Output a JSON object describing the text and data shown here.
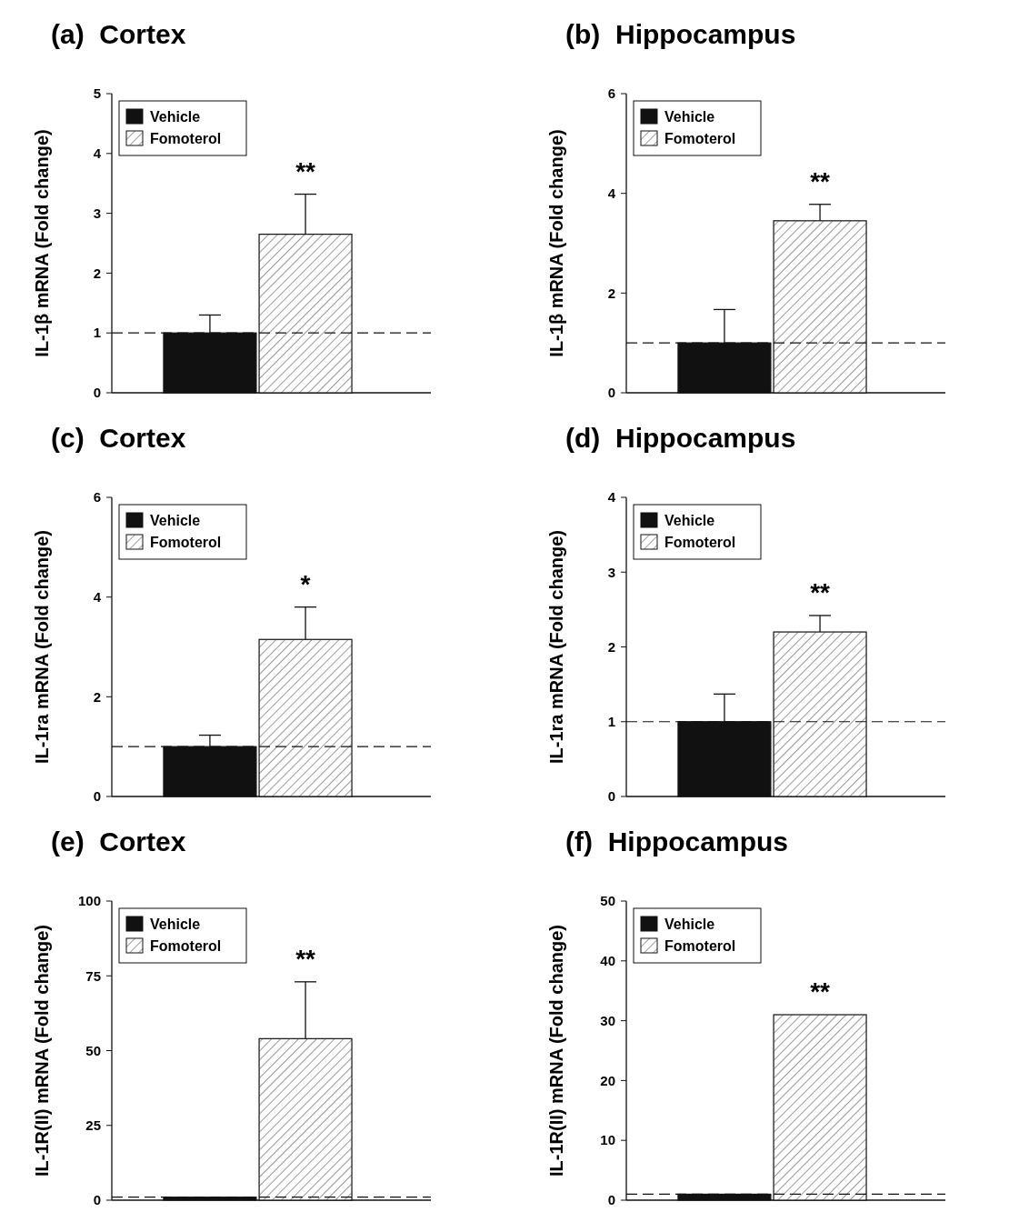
{
  "chart_data": [
    {
      "type": "bar",
      "title": "(a)  Cortex",
      "ylabel": "IL-1β mRNA (Fold change)",
      "categories": [
        null
      ],
      "series": [
        {
          "name": "Vehicle",
          "color": "#111111",
          "values": [
            1
          ],
          "errors": [
            0.3
          ]
        },
        {
          "name": "Fomoterol",
          "color": "#ffffff",
          "values": [
            2.65
          ],
          "errors": [
            0.67
          ]
        }
      ],
      "ylim": [
        0,
        5
      ],
      "yticks": [
        0,
        1,
        2,
        3,
        4,
        5
      ],
      "ref_lines": [
        {
          "axis": "y",
          "value": 1,
          "line_style": "dashed"
        }
      ],
      "annotations": [
        "**"
      ],
      "legend": "top left",
      "grid": false,
      "tick_labels": "y"
    },
    {
      "type": "bar",
      "title": "(b)  Hippocampus",
      "ylabel": "IL-1β mRNA (Fold change)",
      "categories": [
        null
      ],
      "series": [
        {
          "name": "Vehicle",
          "color": "#111111",
          "values": [
            1
          ],
          "errors": [
            0.67
          ]
        },
        {
          "name": "Fomoterol",
          "color": "#ffffff",
          "values": [
            3.45
          ],
          "errors": [
            0.33
          ]
        }
      ],
      "ylim": [
        0,
        6
      ],
      "yticks": [
        0,
        2,
        4,
        6
      ],
      "ref_lines": [
        {
          "axis": "y",
          "value": 1,
          "line_style": "dashed"
        }
      ],
      "annotations": [
        "**"
      ],
      "legend": "top left",
      "grid": false,
      "tick_labels": "y"
    },
    {
      "type": "bar",
      "title": "(c)  Cortex",
      "ylabel": "IL-1ra mRNA (Fold change)",
      "categories": [
        null
      ],
      "series": [
        {
          "name": "Vehicle",
          "color": "#111111",
          "values": [
            1
          ],
          "errors": [
            0.23
          ]
        },
        {
          "name": "Fomoterol",
          "color": "#ffffff",
          "values": [
            3.15
          ],
          "errors": [
            0.65
          ]
        }
      ],
      "ylim": [
        0,
        6
      ],
      "yticks": [
        0,
        2,
        4,
        6
      ],
      "ref_lines": [
        {
          "axis": "y",
          "value": 1,
          "line_style": "dashed"
        }
      ],
      "annotations": [
        "*"
      ],
      "legend": "top left",
      "grid": false,
      "tick_labels": "y"
    },
    {
      "type": "bar",
      "title": "(d)  Hippocampus",
      "ylabel": "IL-1ra mRNA (Fold change)",
      "categories": [
        null
      ],
      "series": [
        {
          "name": "Vehicle",
          "color": "#111111",
          "values": [
            1
          ],
          "errors": [
            0.37
          ]
        },
        {
          "name": "Fomoterol",
          "color": "#ffffff",
          "values": [
            2.2
          ],
          "errors": [
            0.22
          ]
        }
      ],
      "ylim": [
        0,
        4
      ],
      "yticks": [
        0,
        1,
        2,
        3,
        4
      ],
      "ref_lines": [
        {
          "axis": "y",
          "value": 1,
          "line_style": "dashed"
        }
      ],
      "annotations": [
        "**"
      ],
      "legend": "top left",
      "grid": false,
      "tick_labels": "y"
    },
    {
      "type": "bar",
      "title": "(e)  Cortex",
      "ylabel": "IL-1R(II) mRNA (Fold change)",
      "categories": [
        null
      ],
      "series": [
        {
          "name": "Vehicle",
          "color": "#111111",
          "values": [
            1
          ],
          "errors": [
            null
          ]
        },
        {
          "name": "Fomoterol",
          "color": "#ffffff",
          "values": [
            54
          ],
          "errors": [
            19
          ]
        }
      ],
      "ylim": [
        0,
        100
      ],
      "yticks": [
        0,
        25,
        50,
        75,
        100
      ],
      "ref_lines": [
        {
          "axis": "y",
          "value": 1,
          "line_style": "dashed"
        }
      ],
      "annotations": [
        "**"
      ],
      "legend": "top left",
      "grid": false,
      "tick_labels": "y"
    },
    {
      "type": "bar",
      "title": "(f)  Hippocampus",
      "ylabel": "IL-1R(II) mRNA (Fold change)",
      "categories": [
        null
      ],
      "series": [
        {
          "name": "Vehicle",
          "color": "#111111",
          "values": [
            1
          ],
          "errors": [
            null
          ]
        },
        {
          "name": "Fomoterol",
          "color": "#ffffff",
          "values": [
            31
          ],
          "errors": [
            null
          ]
        }
      ],
      "ylim": [
        0,
        50
      ],
      "yticks": [
        0,
        10,
        20,
        30,
        40,
        50
      ],
      "ref_lines": [
        {
          "axis": "y",
          "value": 1,
          "line_style": "dashed"
        }
      ],
      "annotations": [
        "**"
      ],
      "legend": "top left",
      "grid": false,
      "tick_labels": "y"
    }
  ]
}
